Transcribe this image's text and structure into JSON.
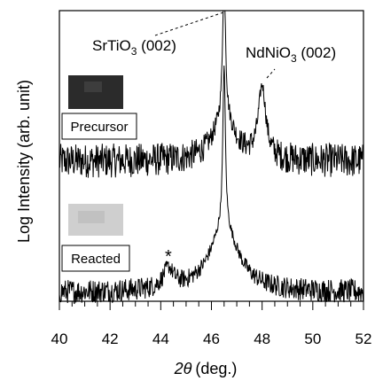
{
  "chart_data": {
    "type": "line",
    "xlabel_symbol": "2θ",
    "xlabel_unit": "(deg.)",
    "ylabel": "Log Intensity (arb. unit)",
    "xlim": [
      40,
      52
    ],
    "x_ticks": [
      "40",
      "42",
      "44",
      "46",
      "48",
      "50",
      "52"
    ],
    "y_scale": "log",
    "grid": false,
    "legend": "none",
    "annotations": {
      "substrate_formula": "SrTiO",
      "substrate_sub": "3",
      "substrate_index": " (002)",
      "film_formula": "NdNiO",
      "film_sub": "3",
      "film_index": " (002)",
      "star_marker": "*",
      "star_x": 44.3
    },
    "series": [
      {
        "name": "Precursor",
        "color": "#000000",
        "noise_level": 0.35,
        "peaks": [
          {
            "center": 46.5,
            "amplitude": 3.2,
            "width": 0.06
          },
          {
            "center": 46.5,
            "amplitude": 0.9,
            "width": 0.5
          },
          {
            "center": 48.0,
            "amplitude": 1.45,
            "width": 0.18
          }
        ]
      },
      {
        "name": "Reacted",
        "color": "#000000",
        "noise_level": 0.25,
        "peaks": [
          {
            "center": 46.5,
            "amplitude": 3.3,
            "width": 0.06
          },
          {
            "center": 46.5,
            "amplitude": 1.3,
            "width": 0.7
          },
          {
            "center": 44.3,
            "amplitude": 0.4,
            "width": 0.25
          }
        ]
      }
    ]
  }
}
